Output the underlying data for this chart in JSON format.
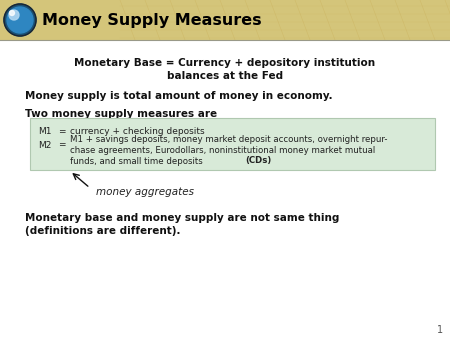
{
  "title": "Money Supply Measures",
  "header_bg": "#D4C57A",
  "slide_bg": "#FFFFFF",
  "title_color": "#000000",
  "title_fontsize": 11.5,
  "line1": "Monetary Base = Currency + depository institution",
  "line1b": "balances at the Fed",
  "line2": "Money supply is total amount of money in economy.",
  "line3": "Two money supply measures are",
  "m1_label": "M1",
  "m1_eq": "=",
  "m1_text": "currency + checking deposits",
  "m2_label": "M2",
  "m2_eq": "=",
  "m2_line1": "M1 + savings deposits, money market deposit accounts, overnight repur-",
  "m2_line2": "chase agreements, Eurodollars, noninstitutional money market mutual",
  "m2_line3": "funds, and small time deposits ",
  "m2_bold": "(CDs)",
  "box_bg": "#D8EAD8",
  "box_edge": "#B0C8B0",
  "arrow_label": "money aggregates",
  "line4": "Monetary base and money supply are not same thing",
  "line4b": "(definitions are different).",
  "page_num": "1"
}
